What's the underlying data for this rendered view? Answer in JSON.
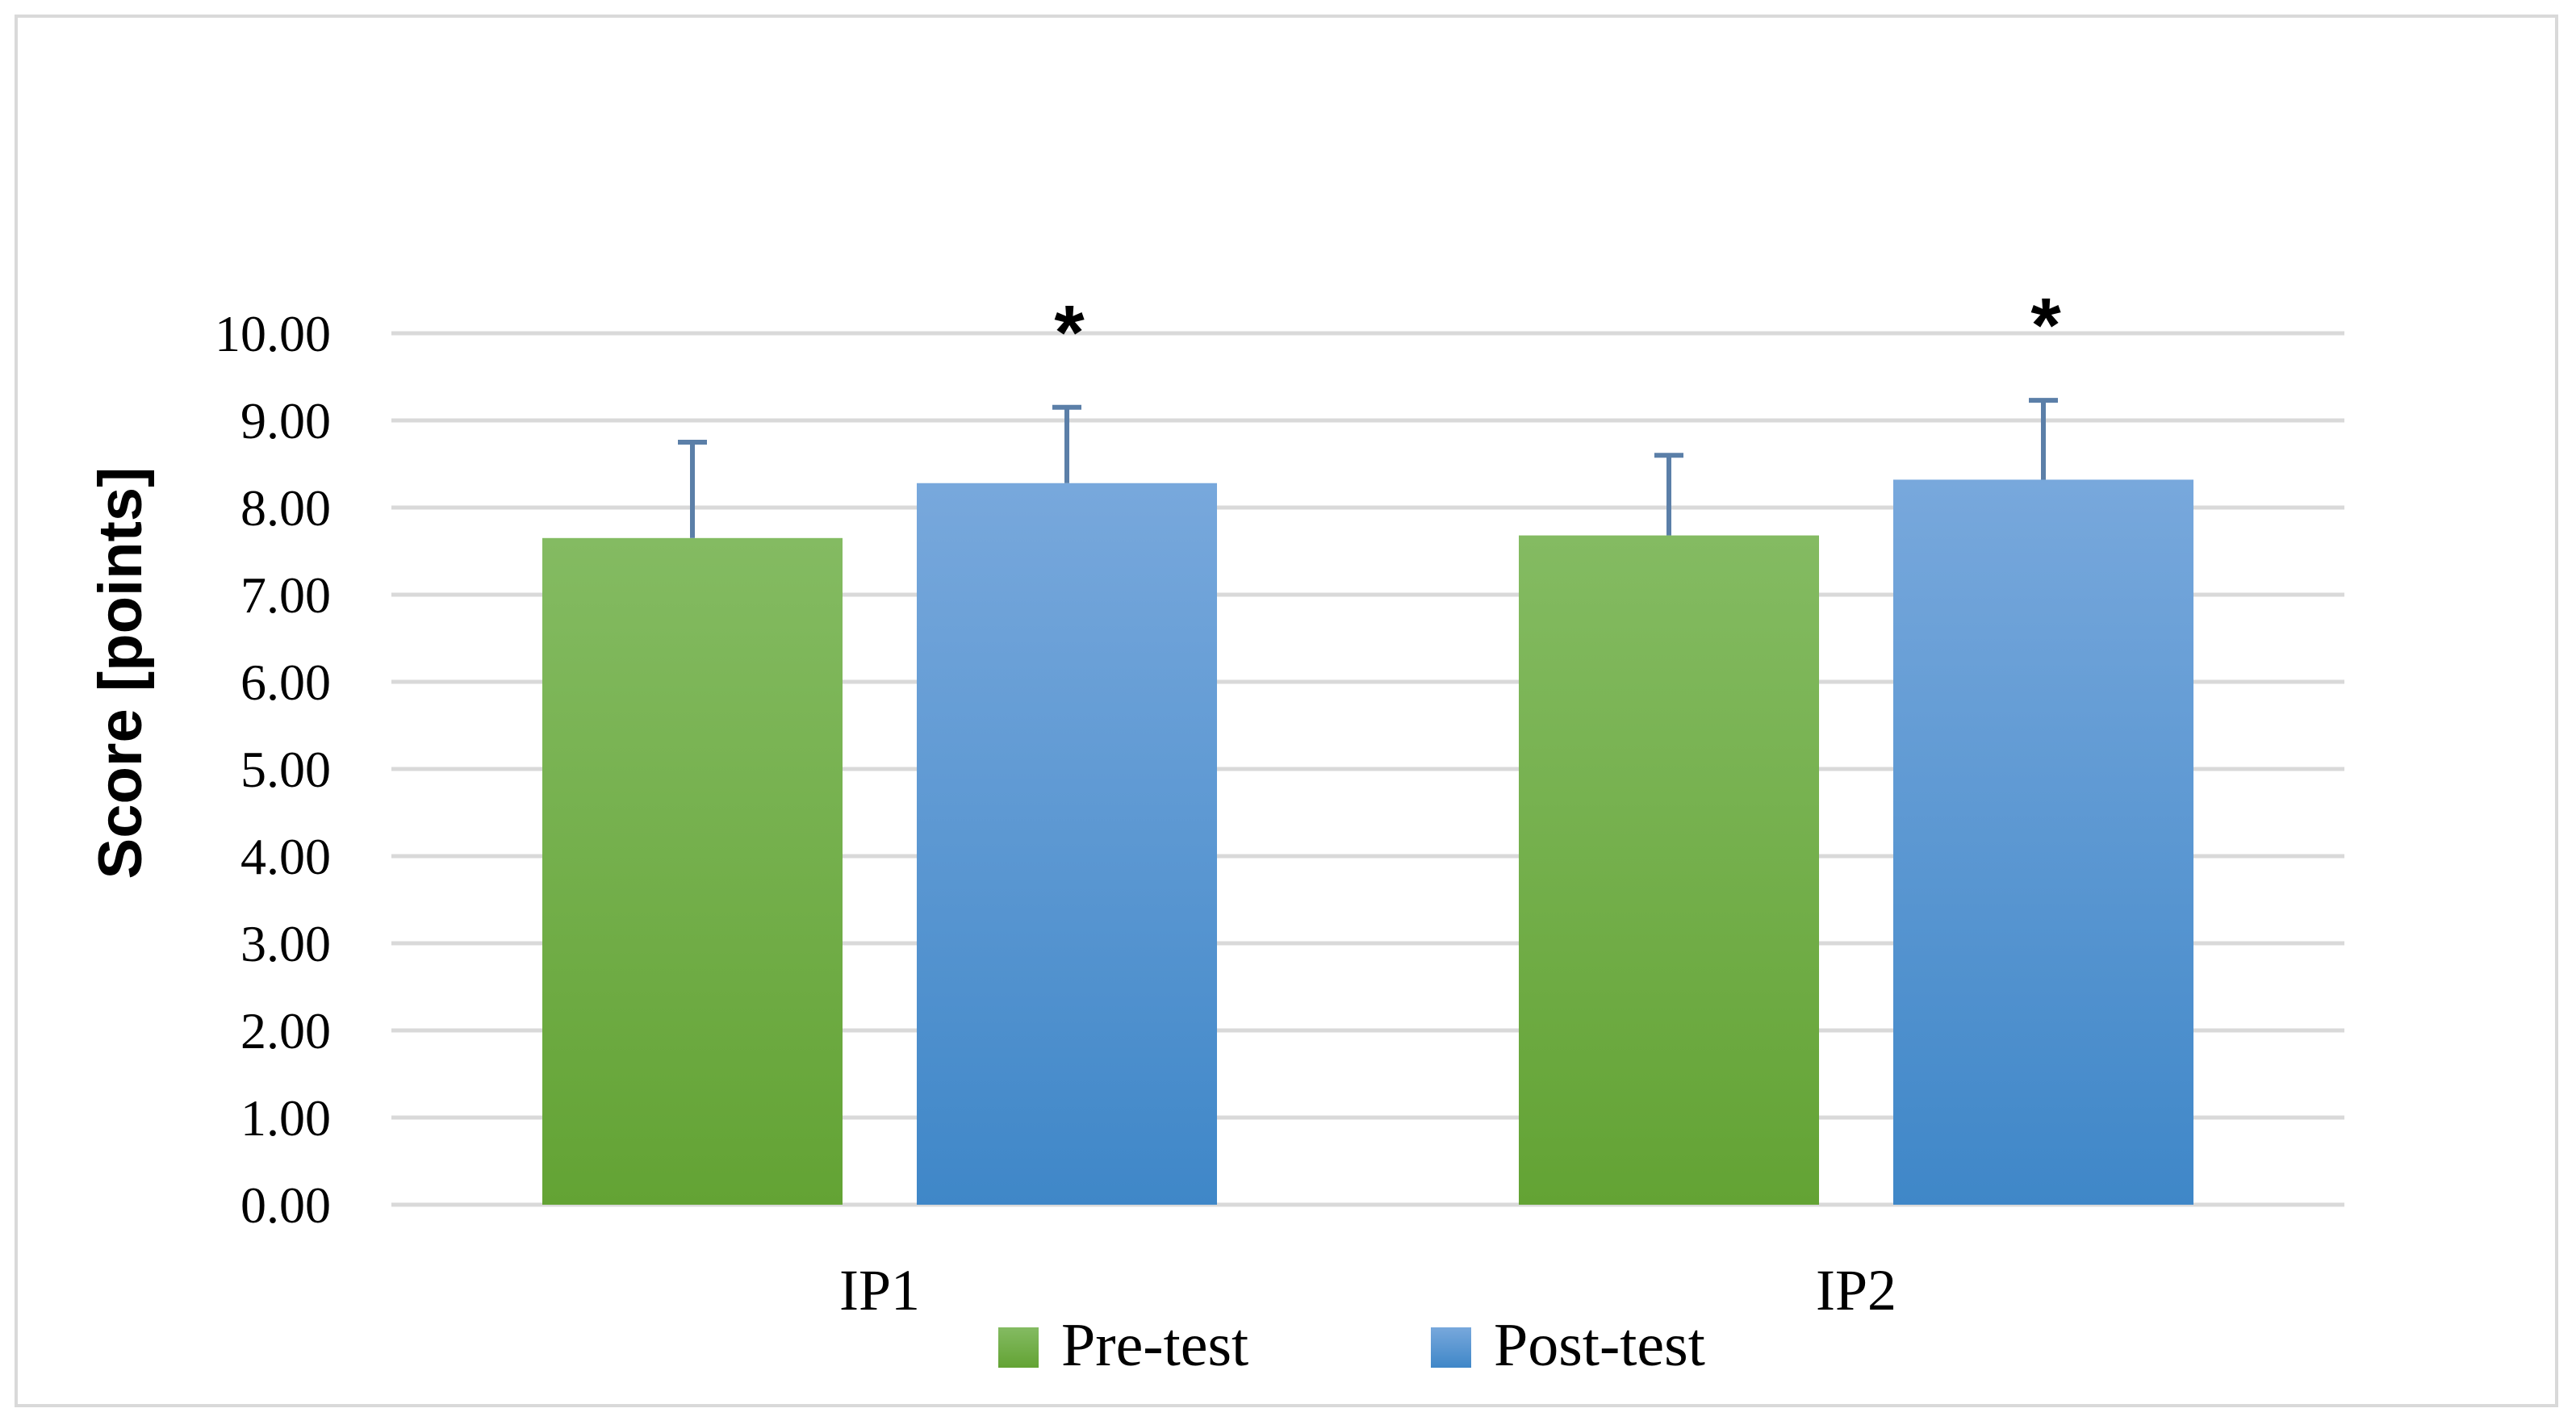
{
  "chart_data": {
    "type": "bar",
    "categories": [
      "IP1",
      "IP2"
    ],
    "series": [
      {
        "name": "Pre-test",
        "values": [
          7.65,
          7.68
        ],
        "errors": [
          1.1,
          0.92
        ],
        "color_top": "#84bb62",
        "color_bottom": "#63a334"
      },
      {
        "name": "Post-test",
        "values": [
          8.28,
          8.32
        ],
        "errors": [
          0.87,
          0.91
        ],
        "color_top": "#78a8dc",
        "color_bottom": "#3f87c8"
      }
    ],
    "significance": [
      "*",
      "*"
    ],
    "yticks": [
      "0.00",
      "1.00",
      "2.00",
      "3.00",
      "4.00",
      "5.00",
      "6.00",
      "7.00",
      "8.00",
      "9.00",
      "10.00"
    ],
    "ylim": [
      0,
      10
    ],
    "ylabel": "Score [points]",
    "xlabel": "",
    "title": "",
    "grid": true,
    "legend": "bottom",
    "gridline_color": "#d9d9d9",
    "errorbar_color": "#5b7fa8"
  }
}
